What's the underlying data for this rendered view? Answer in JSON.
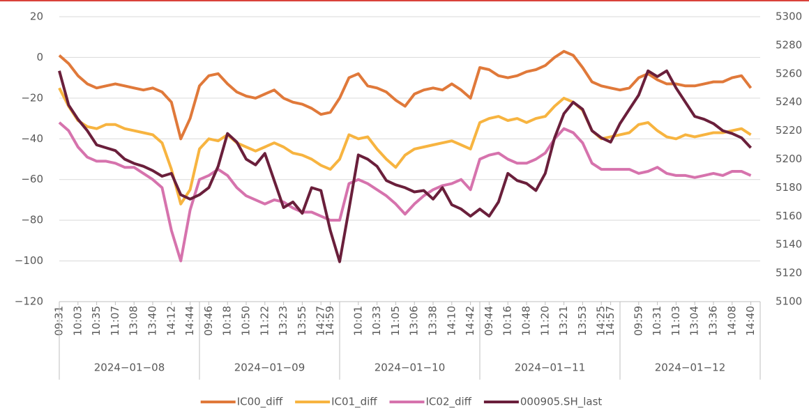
{
  "chart_data": {
    "type": "line",
    "categories": [
      "09:31",
      null,
      "10:03",
      null,
      "10:35",
      null,
      "11:07",
      null,
      "13:08",
      null,
      "13:40",
      null,
      "14:12",
      null,
      "14:44",
      null,
      "09:46",
      null,
      "10:18",
      null,
      "10:50",
      null,
      "11:22",
      null,
      "13:23",
      null,
      "13:55",
      null,
      "14:27",
      "14:59",
      null,
      null,
      "10:01",
      null,
      "10:33",
      null,
      "11:05",
      null,
      "13:06",
      null,
      "13:38",
      null,
      "14:10",
      null,
      "14:42",
      null,
      "09:44",
      null,
      "10:16",
      null,
      "10:48",
      null,
      "11:20",
      null,
      "13:21",
      null,
      "13:53",
      null,
      "14:25",
      "14:57",
      null,
      null,
      "09:59",
      null,
      "10:31",
      null,
      "11:03",
      null,
      "13:04",
      null,
      "13:36",
      null,
      "14:08",
      null,
      "14:40"
    ],
    "groups": [
      "2024−01−08",
      "2024−01−09",
      "2024−01−10",
      "2024−01−11",
      "2024−01−12"
    ],
    "series": [
      {
        "name": "IC00_diff",
        "color": "#e0793a",
        "values": [
          1,
          -3,
          -9,
          -13,
          -15,
          -14,
          -13,
          -14,
          -15,
          -16,
          -15,
          -17,
          -22,
          -40,
          -30,
          -14,
          -9,
          -8,
          -13,
          -17,
          -19,
          -20,
          -18,
          -16,
          -20,
          -22,
          -23,
          -25,
          -28,
          -27,
          -20,
          -10,
          -8,
          -14,
          -15,
          -17,
          -21,
          -24,
          -18,
          -16,
          -15,
          -16,
          -13,
          -16,
          -20,
          -5,
          -6,
          -9,
          -10,
          -9,
          -7,
          -6,
          -4,
          0,
          3,
          1,
          -5,
          -12,
          -14,
          -15,
          -16,
          -15,
          -10,
          -8,
          -11,
          -13,
          -13,
          -14,
          -14,
          -13,
          -12,
          -12,
          -10,
          -9,
          -15
        ]
      },
      {
        "name": "IC01_diff",
        "color": "#f7b440",
        "values": [
          -15,
          -24,
          -31,
          -34,
          -35,
          -33,
          -33,
          -35,
          -36,
          -37,
          -38,
          -42,
          -55,
          -72,
          -65,
          -45,
          -40,
          -41,
          -38,
          -42,
          -44,
          -46,
          -44,
          -42,
          -44,
          -47,
          -48,
          -50,
          -53,
          -55,
          -50,
          -38,
          -40,
          -39,
          -45,
          -50,
          -54,
          -48,
          -45,
          -44,
          -43,
          -42,
          -41,
          -43,
          -45,
          -32,
          -30,
          -29,
          -31,
          -30,
          -32,
          -30,
          -29,
          -24,
          -20,
          -22,
          -26,
          -36,
          -40,
          -39,
          -38,
          -37,
          -33,
          -32,
          -36,
          -39,
          -40,
          -38,
          -39,
          -38,
          -37,
          -37,
          -36,
          -35,
          -38
        ]
      },
      {
        "name": "IC02_diff",
        "color": "#d673ad",
        "values": [
          -32,
          -36,
          -44,
          -49,
          -51,
          -51,
          -52,
          -54,
          -54,
          -57,
          -60,
          -64,
          -85,
          -100,
          -75,
          -60,
          -58,
          -55,
          -58,
          -64,
          -68,
          -70,
          -72,
          -70,
          -71,
          -74,
          -76,
          -76,
          -78,
          -80,
          -80,
          -62,
          -60,
          -62,
          -65,
          -68,
          -72,
          -77,
          -72,
          -68,
          -65,
          -63,
          -62,
          -60,
          -65,
          -50,
          -48,
          -47,
          -50,
          -52,
          -52,
          -50,
          -47,
          -40,
          -35,
          -37,
          -42,
          -52,
          -55,
          -55,
          -55,
          -55,
          -57,
          -56,
          -54,
          -57,
          -58,
          -58,
          -59,
          -58,
          -57,
          -58,
          -56,
          -56,
          -58
        ]
      },
      {
        "name": "000905.SH_last",
        "color": "#6a1f3b",
        "axis": "y2",
        "values": [
          5262,
          5238,
          5228,
          5220,
          5210,
          5208,
          5206,
          5200,
          5197,
          5195,
          5192,
          5188,
          5190,
          5175,
          5172,
          5175,
          5180,
          5195,
          5218,
          5212,
          5200,
          5196,
          5204,
          5185,
          5166,
          5170,
          5162,
          5180,
          5178,
          5150,
          5128,
          5165,
          5203,
          5200,
          5195,
          5185,
          5182,
          5180,
          5177,
          5178,
          5172,
          5180,
          5168,
          5165,
          5160,
          5165,
          5160,
          5170,
          5190,
          5185,
          5183,
          5178,
          5190,
          5215,
          5232,
          5240,
          5235,
          5220,
          5215,
          5212,
          5225,
          5235,
          5245,
          5262,
          5258,
          5262,
          5250,
          5240,
          5230,
          5228,
          5225,
          5220,
          5218,
          5215,
          5208
        ]
      }
    ],
    "ylim": [
      -120,
      20
    ],
    "yticks": [
      {
        "value": -120,
        "label": "−120"
      },
      {
        "value": -100,
        "label": "−100"
      },
      {
        "value": -80,
        "label": "−80"
      },
      {
        "value": -60,
        "label": "−60"
      },
      {
        "value": -40,
        "label": "−40"
      },
      {
        "value": -20,
        "label": "−20"
      },
      0,
      20
    ],
    "y2lim": [
      5100,
      5300
    ],
    "y2ticks": [
      5100,
      5120,
      5140,
      5160,
      5180,
      5200,
      5220,
      5240,
      5260,
      5280,
      5300
    ],
    "grid": true,
    "legend": "bottom"
  }
}
